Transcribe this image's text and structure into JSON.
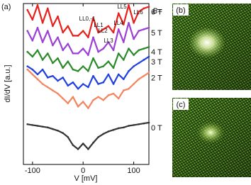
{
  "chart_data": {
    "type": "line",
    "panel_label": "(a)",
    "x_label": "V [mV]",
    "y_label": "dI/dV [a.u.]",
    "legend_title": "B=",
    "x": [
      -110,
      -100,
      -90,
      -80,
      -70,
      -60,
      -50,
      -40,
      -30,
      -20,
      -10,
      0,
      10,
      20,
      30,
      40,
      50,
      60,
      70,
      80,
      90,
      100,
      110,
      120,
      130
    ],
    "xlim": [
      -118,
      130
    ],
    "xticks": [
      -100,
      0,
      100
    ],
    "ylim": [
      0,
      10
    ],
    "series": [
      {
        "name": "6 T",
        "color": "#e8201c",
        "values": [
          9.6,
          9.0,
          9.9,
          8.8,
          9.7,
          8.6,
          9.2,
          8.2,
          8.6,
          8.0,
          8.0,
          8.3,
          7.9,
          9.1,
          8.2,
          8.4,
          8.6,
          8.2,
          9.4,
          8.7,
          9.9,
          8.8,
          9.5,
          9.7,
          9.8
        ]
      },
      {
        "name": "5 T",
        "color": "#9b3fd6",
        "values": [
          8.3,
          7.7,
          8.5,
          7.6,
          8.3,
          7.4,
          7.9,
          7.1,
          7.5,
          6.9,
          6.9,
          7.2,
          6.8,
          7.9,
          7.0,
          7.2,
          7.6,
          7.1,
          8.4,
          7.6,
          8.8,
          7.8,
          8.3,
          8.4,
          8.5
        ]
      },
      {
        "name": "4 T",
        "color": "#2a8a2a",
        "values": [
          7.0,
          6.7,
          7.1,
          6.5,
          6.9,
          6.3,
          6.6,
          6.0,
          6.4,
          5.9,
          5.8,
          6.1,
          5.8,
          6.6,
          6.0,
          6.1,
          6.4,
          6.0,
          6.9,
          6.5,
          7.2,
          6.8,
          7.1,
          7.2,
          7.3
        ]
      },
      {
        "name": "3 T",
        "color": "#1f3fe0",
        "values": [
          6.1,
          5.9,
          5.6,
          5.9,
          5.4,
          5.5,
          5.2,
          5.4,
          4.9,
          5.1,
          4.7,
          5.0,
          4.8,
          5.5,
          5.0,
          5.1,
          5.6,
          5.0,
          5.6,
          5.3,
          5.8,
          6.1,
          6.3,
          6.5,
          6.7
        ]
      },
      {
        "name": "2 T",
        "color": "#f4845f",
        "values": [
          5.9,
          5.6,
          5.3,
          5.0,
          4.8,
          4.6,
          4.4,
          4.1,
          3.8,
          4.2,
          3.6,
          3.9,
          3.5,
          4.0,
          4.2,
          4.0,
          4.3,
          4.4,
          4.1,
          4.6,
          4.7,
          5.0,
          5.3,
          5.5,
          5.7
        ]
      },
      {
        "name": "0 T",
        "color": "#333333",
        "values": [
          2.5,
          2.45,
          2.4,
          2.35,
          2.3,
          2.2,
          2.1,
          1.95,
          1.7,
          1.2,
          0.95,
          1.3,
          0.95,
          1.35,
          1.7,
          1.9,
          2.05,
          2.15,
          2.25,
          2.3,
          2.4,
          2.45,
          2.5,
          2.55,
          2.6
        ]
      }
    ],
    "annotations": [
      "LL0,-1",
      "LL1",
      "LL2",
      "LL3",
      "LL4",
      "LL5",
      "LL6"
    ]
  },
  "panels": [
    {
      "label": "(b)"
    },
    {
      "label": "(c)"
    }
  ]
}
